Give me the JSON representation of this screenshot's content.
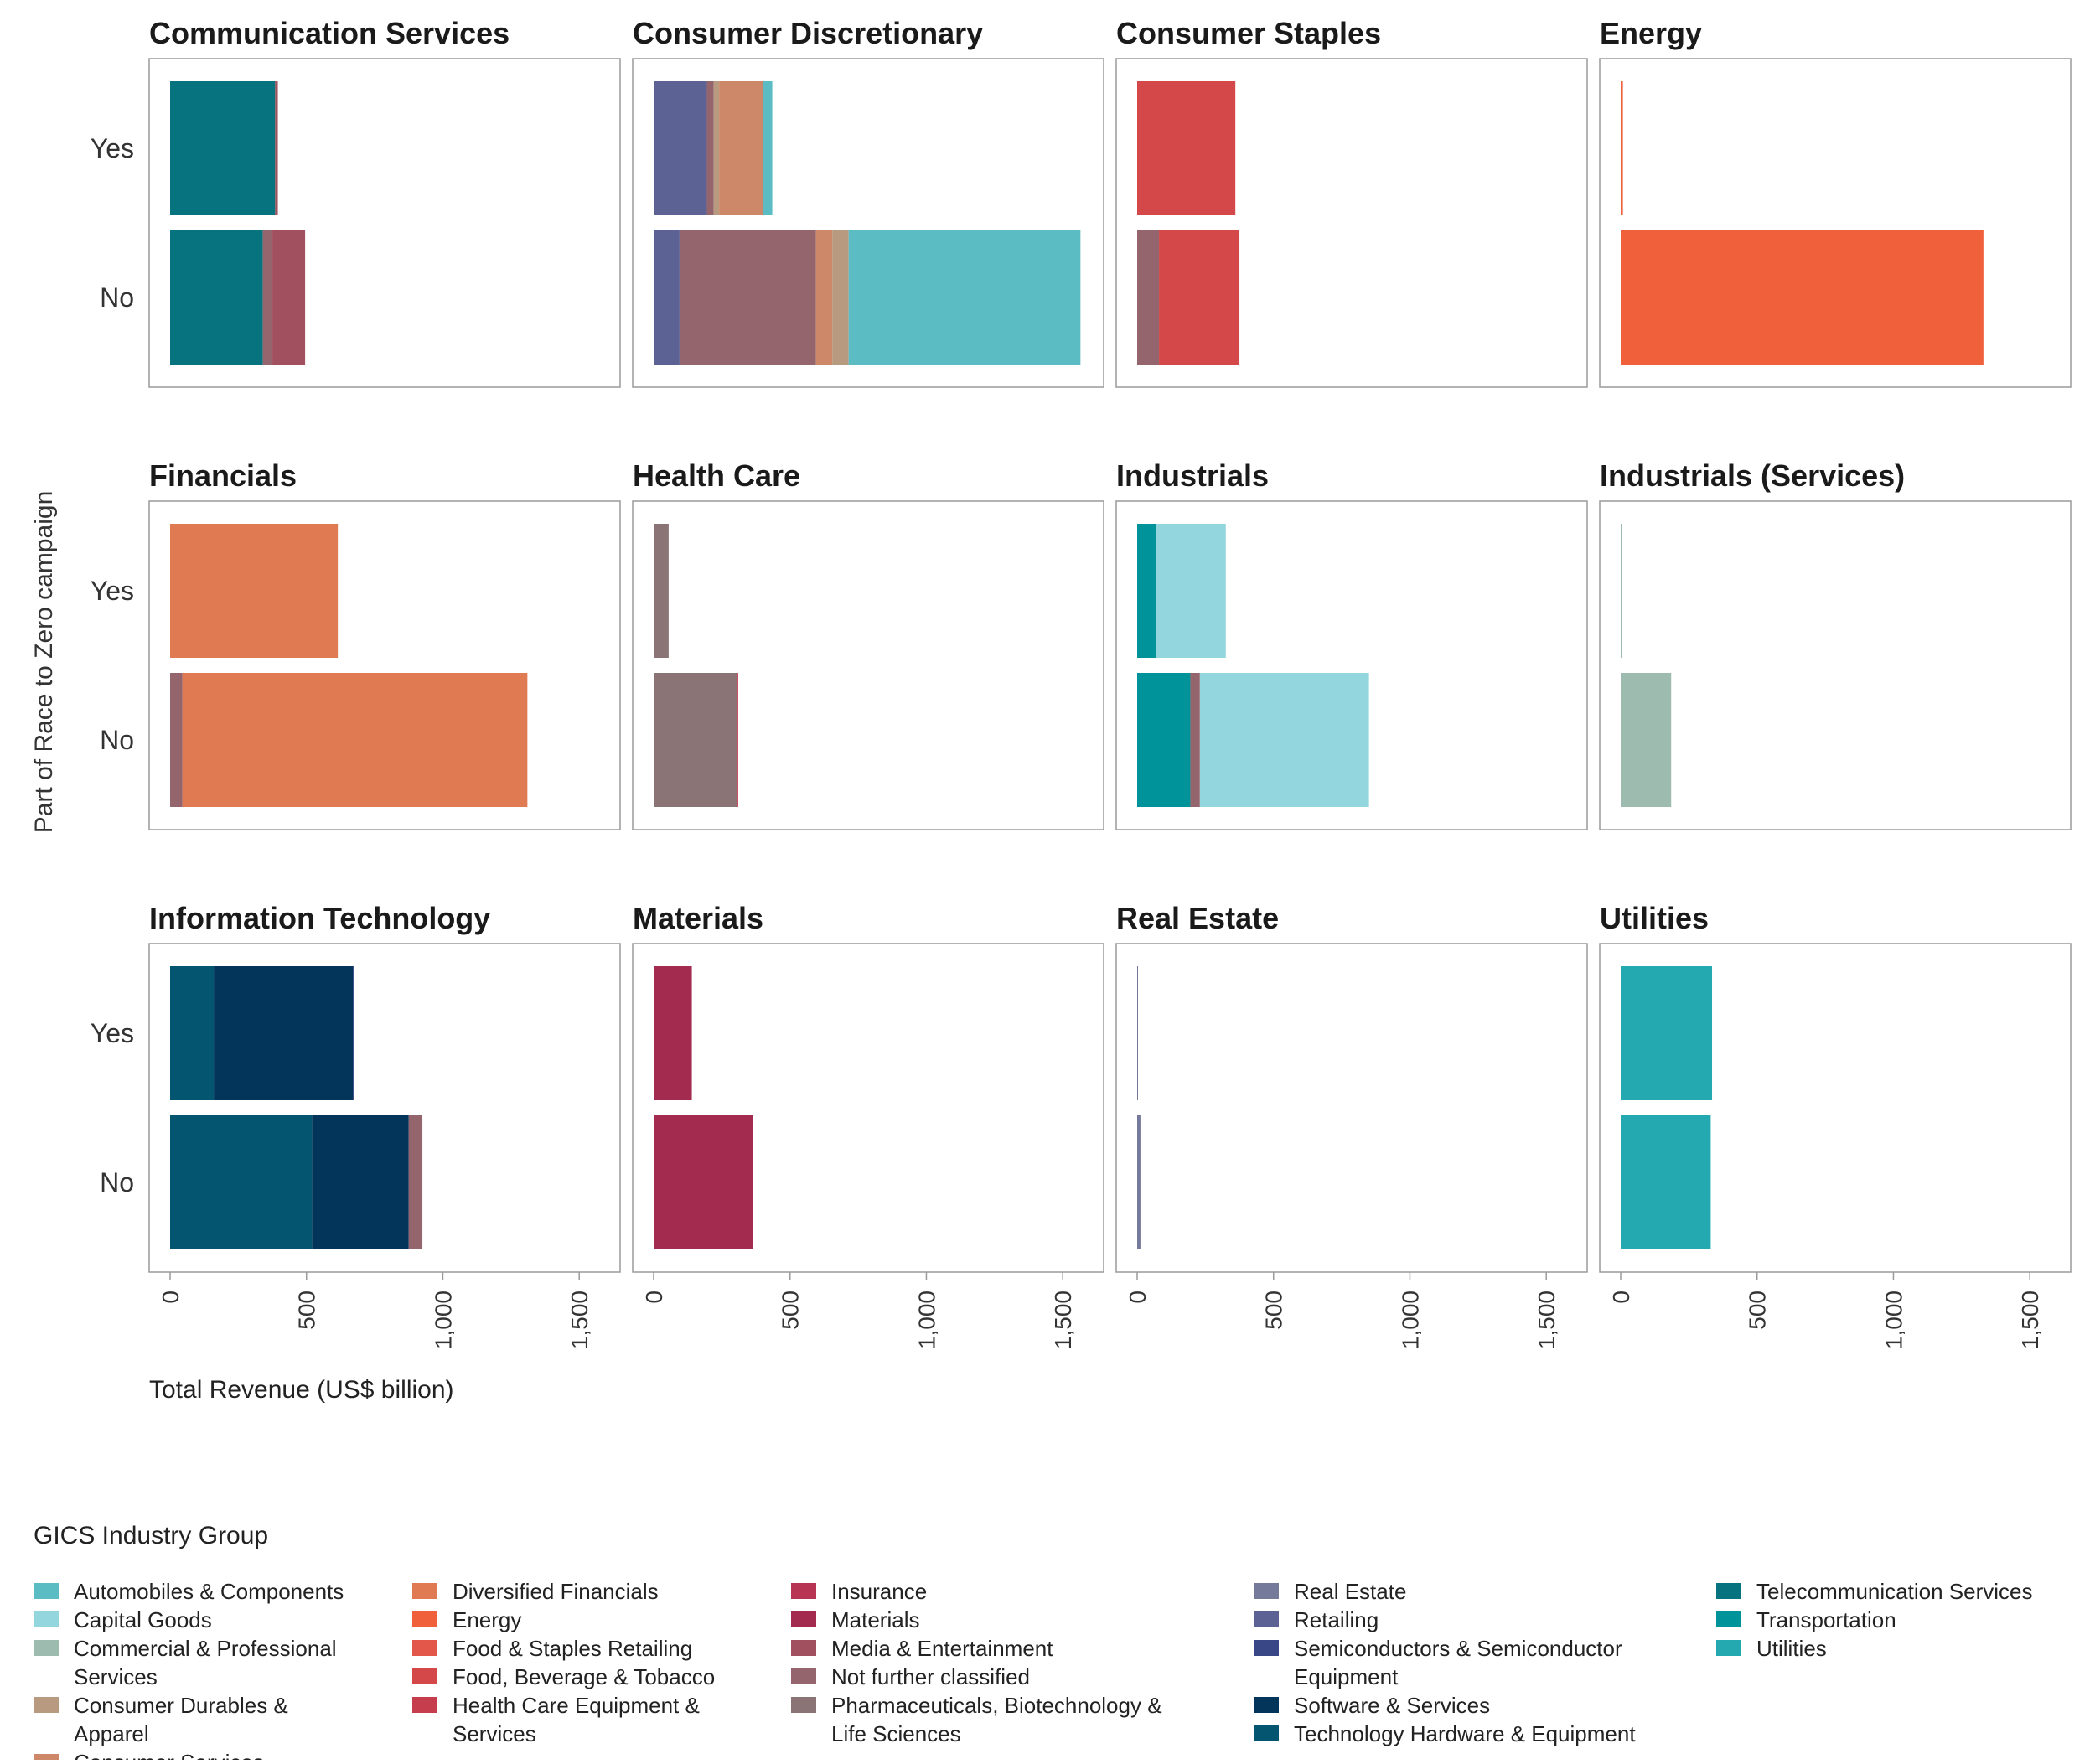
{
  "chart_data": {
    "type": "bar",
    "orientation": "horizontal",
    "stacked": true,
    "ylabel": "Part of Race to Zero campaign",
    "xlabel": "Total Revenue (US$ billion)",
    "xlim": [
      0,
      1650
    ],
    "xticks": [
      0,
      500,
      1000,
      1500
    ],
    "xtick_labels": [
      "0",
      "500",
      "1,000",
      "1,500"
    ],
    "rows": [
      "Yes",
      "No"
    ],
    "legend": {
      "title": "GICS Industry Group",
      "items": [
        {
          "key": "auto",
          "label": "Automobiles & Components",
          "color": "#5bbcc4"
        },
        {
          "key": "capg",
          "label": "Capital Goods",
          "color": "#94d6dd"
        },
        {
          "key": "comm",
          "label": "Commercial & Professional Services",
          "color": "#9dbbae"
        },
        {
          "key": "durables",
          "label": "Consumer Durables & Apparel",
          "color": "#b89a80"
        },
        {
          "key": "cserv",
          "label": "Consumer Services",
          "color": "#cc8868"
        },
        {
          "key": "divfin",
          "label": "Diversified Financials",
          "color": "#e07a52"
        },
        {
          "key": "energy",
          "label": "Energy",
          "color": "#f0603b"
        },
        {
          "key": "foodret",
          "label": "Food & Staples Retailing",
          "color": "#e2574a"
        },
        {
          "key": "foodbev",
          "label": "Food, Beverage & Tobacco",
          "color": "#d54849"
        },
        {
          "key": "hce",
          "label": "Health Care Equipment & Services",
          "color": "#c63d4e"
        },
        {
          "key": "insurance",
          "label": "Insurance",
          "color": "#b73553"
        },
        {
          "key": "materials",
          "label": "Materials",
          "color": "#a32b50"
        },
        {
          "key": "media",
          "label": "Media & Entertainment",
          "color": "#a1505f"
        },
        {
          "key": "nfc",
          "label": "Not further classified",
          "color": "#95656e"
        },
        {
          "key": "pharma",
          "label": "Pharmaceuticals, Biotechnology & Life Sciences",
          "color": "#8b7475"
        },
        {
          "key": "realestate",
          "label": "Real Estate",
          "color": "#757a9a"
        },
        {
          "key": "retail",
          "label": "Retailing",
          "color": "#5c6394"
        },
        {
          "key": "semis",
          "label": "Semiconductors & Semiconductor Equipment",
          "color": "#3a4786"
        },
        {
          "key": "software",
          "label": "Software & Services",
          "color": "#03355a"
        },
        {
          "key": "tech",
          "label": "Technology Hardware & Equipment",
          "color": "#045670"
        },
        {
          "key": "telecom",
          "label": "Telecommunication Services",
          "color": "#07737f"
        },
        {
          "key": "transport",
          "label": "Transportation",
          "color": "#00949a"
        },
        {
          "key": "utilities",
          "label": "Utilities",
          "color": "#24a9b1"
        }
      ]
    },
    "panels": [
      {
        "title": "Communication Services",
        "yes": [
          {
            "k": "telecom",
            "v": 385
          },
          {
            "k": "media",
            "v": 10
          }
        ],
        "no": [
          {
            "k": "telecom",
            "v": 340
          },
          {
            "k": "nfc",
            "v": 35
          },
          {
            "k": "media",
            "v": 120
          }
        ]
      },
      {
        "title": "Consumer Discretionary",
        "yes": [
          {
            "k": "retail",
            "v": 195
          },
          {
            "k": "nfc",
            "v": 25
          },
          {
            "k": "durables",
            "v": 20
          },
          {
            "k": "cserv",
            "v": 160
          },
          {
            "k": "auto",
            "v": 35
          }
        ],
        "no": [
          {
            "k": "retail",
            "v": 95
          },
          {
            "k": "nfc",
            "v": 500
          },
          {
            "k": "cserv",
            "v": 60
          },
          {
            "k": "durables",
            "v": 60
          },
          {
            "k": "auto",
            "v": 850
          }
        ]
      },
      {
        "title": "Consumer Staples",
        "yes": [
          {
            "k": "foodbev",
            "v": 360
          }
        ],
        "no": [
          {
            "k": "nfc",
            "v": 80
          },
          {
            "k": "foodbev",
            "v": 295
          }
        ]
      },
      {
        "title": "Energy",
        "yes": [
          {
            "k": "energy",
            "v": 8
          }
        ],
        "no": [
          {
            "k": "energy",
            "v": 1330
          }
        ]
      },
      {
        "title": "Financials",
        "yes": [
          {
            "k": "divfin",
            "v": 615
          }
        ],
        "no": [
          {
            "k": "nfc",
            "v": 45
          },
          {
            "k": "divfin",
            "v": 1265
          }
        ]
      },
      {
        "title": "Health Care",
        "yes": [
          {
            "k": "pharma",
            "v": 55
          }
        ],
        "no": [
          {
            "k": "pharma",
            "v": 305
          },
          {
            "k": "hce",
            "v": 5
          }
        ]
      },
      {
        "title": "Industrials",
        "yes": [
          {
            "k": "transport",
            "v": 70
          },
          {
            "k": "capg",
            "v": 255
          }
        ],
        "no": [
          {
            "k": "transport",
            "v": 195
          },
          {
            "k": "nfc",
            "v": 35
          },
          {
            "k": "capg",
            "v": 620
          }
        ]
      },
      {
        "title": "Industrials (Services)",
        "yes": [
          {
            "k": "comm",
            "v": 3
          }
        ],
        "no": [
          {
            "k": "comm",
            "v": 185
          }
        ]
      },
      {
        "title": "Information Technology",
        "yes": [
          {
            "k": "tech",
            "v": 160
          },
          {
            "k": "software",
            "v": 510
          },
          {
            "k": "semis",
            "v": 5
          }
        ],
        "no": [
          {
            "k": "tech",
            "v": 520
          },
          {
            "k": "software",
            "v": 355
          },
          {
            "k": "nfc",
            "v": 50
          }
        ]
      },
      {
        "title": "Materials",
        "yes": [
          {
            "k": "materials",
            "v": 140
          }
        ],
        "no": [
          {
            "k": "materials",
            "v": 365
          }
        ]
      },
      {
        "title": "Real Estate",
        "yes": [
          {
            "k": "realestate",
            "v": 2
          }
        ],
        "no": [
          {
            "k": "realestate",
            "v": 12
          }
        ]
      },
      {
        "title": "Utilities",
        "yes": [
          {
            "k": "utilities",
            "v": 335
          }
        ],
        "no": [
          {
            "k": "utilities",
            "v": 330
          }
        ]
      }
    ]
  }
}
